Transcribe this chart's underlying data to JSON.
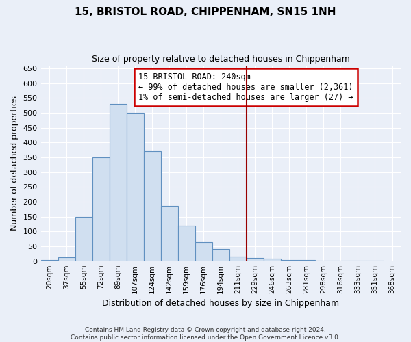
{
  "title": "15, BRISTOL ROAD, CHIPPENHAM, SN15 1NH",
  "subtitle": "Size of property relative to detached houses in Chippenham",
  "xlabel": "Distribution of detached houses by size in Chippenham",
  "ylabel": "Number of detached properties",
  "categories": [
    "20sqm",
    "37sqm",
    "55sqm",
    "72sqm",
    "89sqm",
    "107sqm",
    "124sqm",
    "142sqm",
    "159sqm",
    "176sqm",
    "194sqm",
    "211sqm",
    "229sqm",
    "246sqm",
    "263sqm",
    "281sqm",
    "298sqm",
    "316sqm",
    "333sqm",
    "351sqm",
    "368sqm"
  ],
  "values": [
    5,
    12,
    150,
    350,
    530,
    500,
    370,
    185,
    120,
    65,
    40,
    15,
    10,
    8,
    5,
    3,
    2,
    1,
    1,
    1,
    0
  ],
  "bar_fill_color": "#d0dff0",
  "bar_edge_color": "#6090c0",
  "vline_index": 11.5,
  "annotation_text": "15 BRISTOL ROAD: 240sqm\n← 99% of detached houses are smaller (2,361)\n1% of semi-detached houses are larger (27) →",
  "annotation_fontsize": 8.5,
  "ylim": [
    0,
    660
  ],
  "yticks": [
    0,
    50,
    100,
    150,
    200,
    250,
    300,
    350,
    400,
    450,
    500,
    550,
    600,
    650
  ],
  "footer": "Contains HM Land Registry data © Crown copyright and database right 2024.\nContains public sector information licensed under the Open Government Licence v3.0.",
  "bg_color": "#eaeff8",
  "plot_bg_color": "#eaeff8",
  "grid_color": "#ffffff",
  "title_fontsize": 11,
  "subtitle_fontsize": 9,
  "ylabel_fontsize": 9,
  "xlabel_fontsize": 9,
  "tick_fontsize": 8,
  "xtick_fontsize": 7.5
}
